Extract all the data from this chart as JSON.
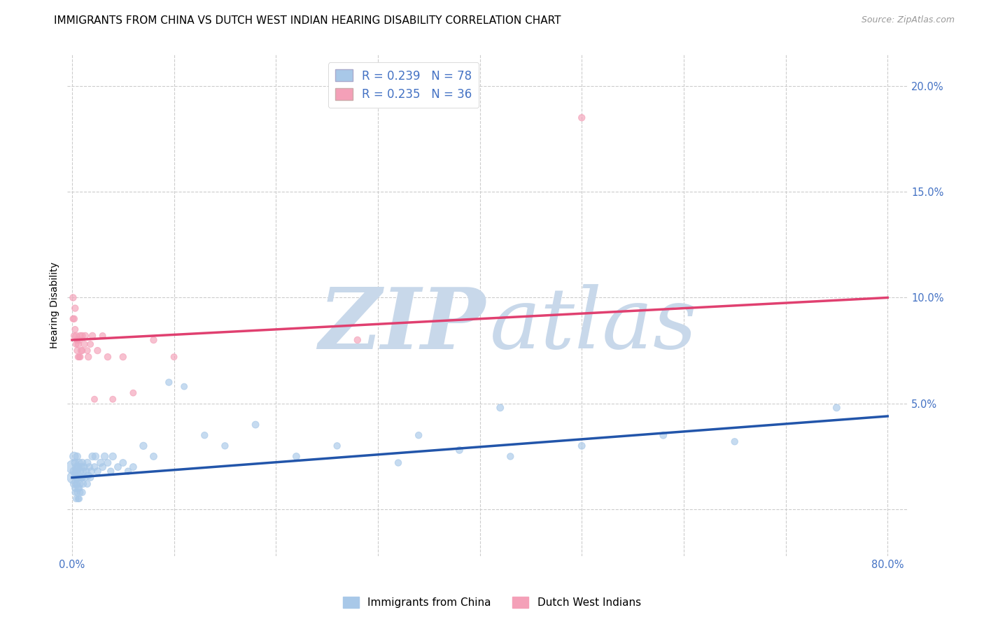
{
  "title": "IMMIGRANTS FROM CHINA VS DUTCH WEST INDIAN HEARING DISABILITY CORRELATION CHART",
  "source": "Source: ZipAtlas.com",
  "ylabel": "Hearing Disability",
  "xlim": [
    -0.005,
    0.82
  ],
  "ylim": [
    -0.022,
    0.215
  ],
  "xticks": [
    0.0,
    0.1,
    0.2,
    0.3,
    0.4,
    0.5,
    0.6,
    0.7,
    0.8
  ],
  "xticklabels": [
    "0.0%",
    "",
    "",
    "",
    "",
    "",
    "",
    "",
    "80.0%"
  ],
  "yticks": [
    0.0,
    0.05,
    0.1,
    0.15,
    0.2
  ],
  "yticklabels_right": [
    "",
    "5.0%",
    "10.0%",
    "15.0%",
    "20.0%"
  ],
  "blue_color": "#a8c8e8",
  "pink_color": "#f4a0b8",
  "blue_line_color": "#2255aa",
  "pink_line_color": "#e04070",
  "legend_text_color": "#4472c4",
  "grid_color": "#cccccc",
  "R_blue": 0.239,
  "N_blue": 78,
  "R_pink": 0.235,
  "N_pink": 36,
  "blue_trend_x": [
    0.0,
    0.8
  ],
  "blue_trend_y": [
    0.015,
    0.044
  ],
  "pink_trend_x": [
    0.0,
    0.8
  ],
  "pink_trend_y": [
    0.08,
    0.1
  ],
  "blue_x": [
    0.001,
    0.001,
    0.002,
    0.002,
    0.002,
    0.003,
    0.003,
    0.003,
    0.003,
    0.004,
    0.004,
    0.004,
    0.004,
    0.004,
    0.005,
    0.005,
    0.005,
    0.005,
    0.005,
    0.006,
    0.006,
    0.006,
    0.006,
    0.007,
    0.007,
    0.007,
    0.007,
    0.008,
    0.008,
    0.008,
    0.009,
    0.009,
    0.01,
    0.01,
    0.01,
    0.011,
    0.011,
    0.012,
    0.013,
    0.014,
    0.015,
    0.015,
    0.016,
    0.017,
    0.018,
    0.019,
    0.02,
    0.022,
    0.023,
    0.025,
    0.028,
    0.03,
    0.032,
    0.035,
    0.038,
    0.04,
    0.045,
    0.05,
    0.055,
    0.06,
    0.07,
    0.08,
    0.095,
    0.11,
    0.13,
    0.15,
    0.18,
    0.22,
    0.26,
    0.32,
    0.38,
    0.43,
    0.5,
    0.58,
    0.65,
    0.75,
    0.42,
    0.34
  ],
  "blue_y": [
    0.02,
    0.015,
    0.025,
    0.018,
    0.012,
    0.022,
    0.016,
    0.01,
    0.008,
    0.02,
    0.015,
    0.012,
    0.005,
    0.018,
    0.025,
    0.018,
    0.012,
    0.008,
    0.015,
    0.02,
    0.015,
    0.01,
    0.005,
    0.022,
    0.015,
    0.01,
    0.005,
    0.018,
    0.012,
    0.008,
    0.02,
    0.015,
    0.022,
    0.015,
    0.008,
    0.018,
    0.012,
    0.02,
    0.015,
    0.018,
    0.022,
    0.012,
    0.016,
    0.02,
    0.015,
    0.018,
    0.025,
    0.02,
    0.025,
    0.018,
    0.022,
    0.02,
    0.025,
    0.022,
    0.018,
    0.025,
    0.02,
    0.022,
    0.018,
    0.02,
    0.03,
    0.025,
    0.06,
    0.058,
    0.035,
    0.03,
    0.04,
    0.025,
    0.03,
    0.022,
    0.028,
    0.025,
    0.03,
    0.035,
    0.032,
    0.048,
    0.048,
    0.035
  ],
  "blue_size": [
    200,
    150,
    80,
    70,
    60,
    60,
    50,
    45,
    40,
    55,
    50,
    45,
    40,
    50,
    55,
    50,
    45,
    40,
    45,
    55,
    50,
    45,
    40,
    55,
    50,
    45,
    40,
    50,
    45,
    40,
    55,
    50,
    55,
    50,
    45,
    50,
    45,
    50,
    45,
    50,
    55,
    45,
    50,
    50,
    45,
    50,
    55,
    50,
    55,
    50,
    55,
    50,
    55,
    50,
    45,
    55,
    50,
    50,
    45,
    50,
    55,
    50,
    45,
    40,
    45,
    45,
    50,
    50,
    45,
    45,
    50,
    45,
    50,
    50,
    45,
    50,
    50,
    45
  ],
  "pink_x": [
    0.001,
    0.001,
    0.002,
    0.002,
    0.003,
    0.003,
    0.004,
    0.004,
    0.005,
    0.005,
    0.006,
    0.006,
    0.007,
    0.007,
    0.008,
    0.008,
    0.009,
    0.01,
    0.01,
    0.012,
    0.013,
    0.015,
    0.016,
    0.018,
    0.02,
    0.022,
    0.025,
    0.03,
    0.035,
    0.04,
    0.05,
    0.06,
    0.08,
    0.1,
    0.28,
    0.5
  ],
  "pink_y": [
    0.1,
    0.09,
    0.09,
    0.082,
    0.095,
    0.085,
    0.082,
    0.078,
    0.08,
    0.075,
    0.078,
    0.072,
    0.08,
    0.072,
    0.082,
    0.072,
    0.075,
    0.082,
    0.075,
    0.078,
    0.082,
    0.075,
    0.072,
    0.078,
    0.082,
    0.052,
    0.075,
    0.082,
    0.072,
    0.052,
    0.072,
    0.055,
    0.08,
    0.072,
    0.08,
    0.185
  ],
  "pink_size": [
    45,
    40,
    45,
    40,
    45,
    40,
    45,
    40,
    45,
    40,
    45,
    40,
    45,
    40,
    45,
    40,
    45,
    45,
    40,
    45,
    45,
    40,
    45,
    40,
    45,
    40,
    45,
    40,
    45,
    40,
    45,
    40,
    45,
    40,
    45,
    45
  ],
  "title_fontsize": 11,
  "axis_label_fontsize": 10,
  "tick_fontsize": 10.5
}
